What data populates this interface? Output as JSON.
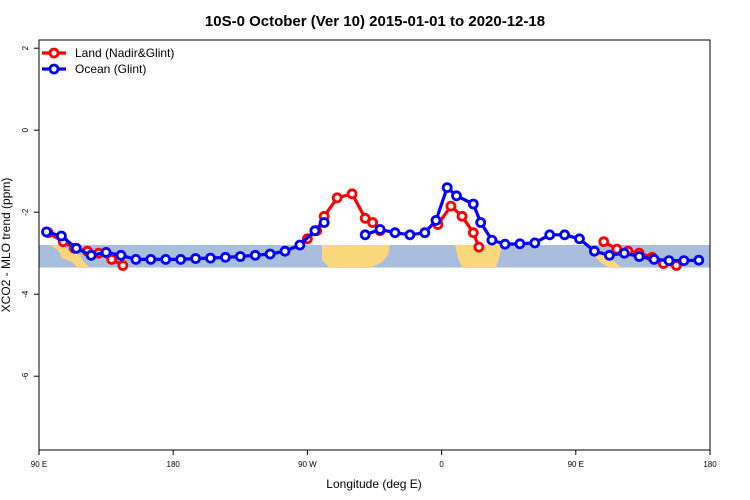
{
  "chart_data": {
    "type": "line",
    "title": "10S-0 October (Ver 10)   2015-01-01 to 2020-12-18",
    "xlabel": "Longitude (deg E)",
    "ylabel": "XCO2 - MLO trend (ppm)",
    "xlim": [
      90,
      450
    ],
    "ylim": [
      -7.8,
      2.2
    ],
    "x_ticks": [
      {
        "value": 90,
        "label": "90 E"
      },
      {
        "value": 162,
        "label": "180"
      },
      {
        "value": 234,
        "label": "90 W"
      },
      {
        "value": 306,
        "label": "0"
      },
      {
        "value": 378,
        "label": "90 E"
      },
      {
        "value": 450,
        "label": "180"
      }
    ],
    "y_ticks": [
      {
        "value": 2,
        "label": "2"
      },
      {
        "value": 0,
        "label": "0"
      },
      {
        "value": -2,
        "label": "-2"
      },
      {
        "value": -4,
        "label": "-4"
      },
      {
        "value": -6,
        "label": "-6"
      }
    ],
    "legend_position": "top-left",
    "band": {
      "y_min": -3.35,
      "y_max": -2.8,
      "color": "#a8bedc",
      "land_color": "#fbd77b"
    },
    "series": [
      {
        "name": "Land (Nadir&Glint)",
        "color": "#ff0000",
        "segments": [
          [
            [
              95,
              -2.5
            ],
            [
              103,
              -2.72
            ],
            [
              109,
              -2.88
            ],
            [
              116,
              -2.95
            ],
            [
              122,
              -3.0
            ],
            [
              129,
              -3.15
            ],
            [
              135,
              -3.3
            ]
          ],
          [
            [
              234,
              -2.65
            ],
            [
              239,
              -2.45
            ],
            [
              243,
              -2.1
            ],
            [
              250,
              -1.65
            ],
            [
              258,
              -1.55
            ],
            [
              265,
              -2.15
            ],
            [
              269,
              -2.25
            ],
            [
              273,
              -2.45
            ]
          ],
          [
            [
              304,
              -2.3
            ],
            [
              311,
              -1.85
            ],
            [
              317,
              -2.1
            ],
            [
              323,
              -2.5
            ],
            [
              326,
              -2.85
            ]
          ],
          [
            [
              393,
              -2.72
            ],
            [
              400,
              -2.9
            ],
            [
              406,
              -2.95
            ],
            [
              412,
              -3.0
            ],
            [
              419,
              -3.1
            ],
            [
              425,
              -3.25
            ],
            [
              432,
              -3.3
            ]
          ]
        ]
      },
      {
        "name": "Ocean (Glint)",
        "color": "#0000ff",
        "segments": [
          [
            [
              94,
              -2.48
            ],
            [
              102,
              -2.58
            ],
            [
              110,
              -2.88
            ],
            [
              118,
              -3.05
            ],
            [
              126,
              -2.98
            ],
            [
              134,
              -3.05
            ],
            [
              142,
              -3.15
            ],
            [
              150,
              -3.15
            ],
            [
              158,
              -3.15
            ],
            [
              166,
              -3.15
            ],
            [
              174,
              -3.13
            ],
            [
              182,
              -3.12
            ],
            [
              190,
              -3.1
            ],
            [
              198,
              -3.08
            ],
            [
              206,
              -3.05
            ],
            [
              214,
              -3.02
            ],
            [
              222,
              -2.95
            ],
            [
              230,
              -2.8
            ],
            [
              238,
              -2.45
            ],
            [
              243,
              -2.25
            ]
          ],
          [
            [
              265,
              -2.55
            ],
            [
              273,
              -2.42
            ],
            [
              281,
              -2.5
            ],
            [
              289,
              -2.55
            ],
            [
              297,
              -2.5
            ],
            [
              303,
              -2.2
            ],
            [
              309,
              -1.4
            ],
            [
              314,
              -1.6
            ],
            [
              323,
              -1.8
            ],
            [
              327,
              -2.25
            ],
            [
              333,
              -2.68
            ],
            [
              340,
              -2.78
            ],
            [
              348,
              -2.77
            ],
            [
              356,
              -2.75
            ],
            [
              364,
              -2.55
            ],
            [
              372,
              -2.55
            ],
            [
              380,
              -2.65
            ],
            [
              388,
              -2.95
            ],
            [
              396,
              -3.05
            ],
            [
              404,
              -3.0
            ],
            [
              412,
              -3.08
            ],
            [
              420,
              -3.15
            ],
            [
              428,
              -3.18
            ],
            [
              436,
              -3.18
            ],
            [
              444,
              -3.17
            ]
          ]
        ]
      }
    ]
  }
}
